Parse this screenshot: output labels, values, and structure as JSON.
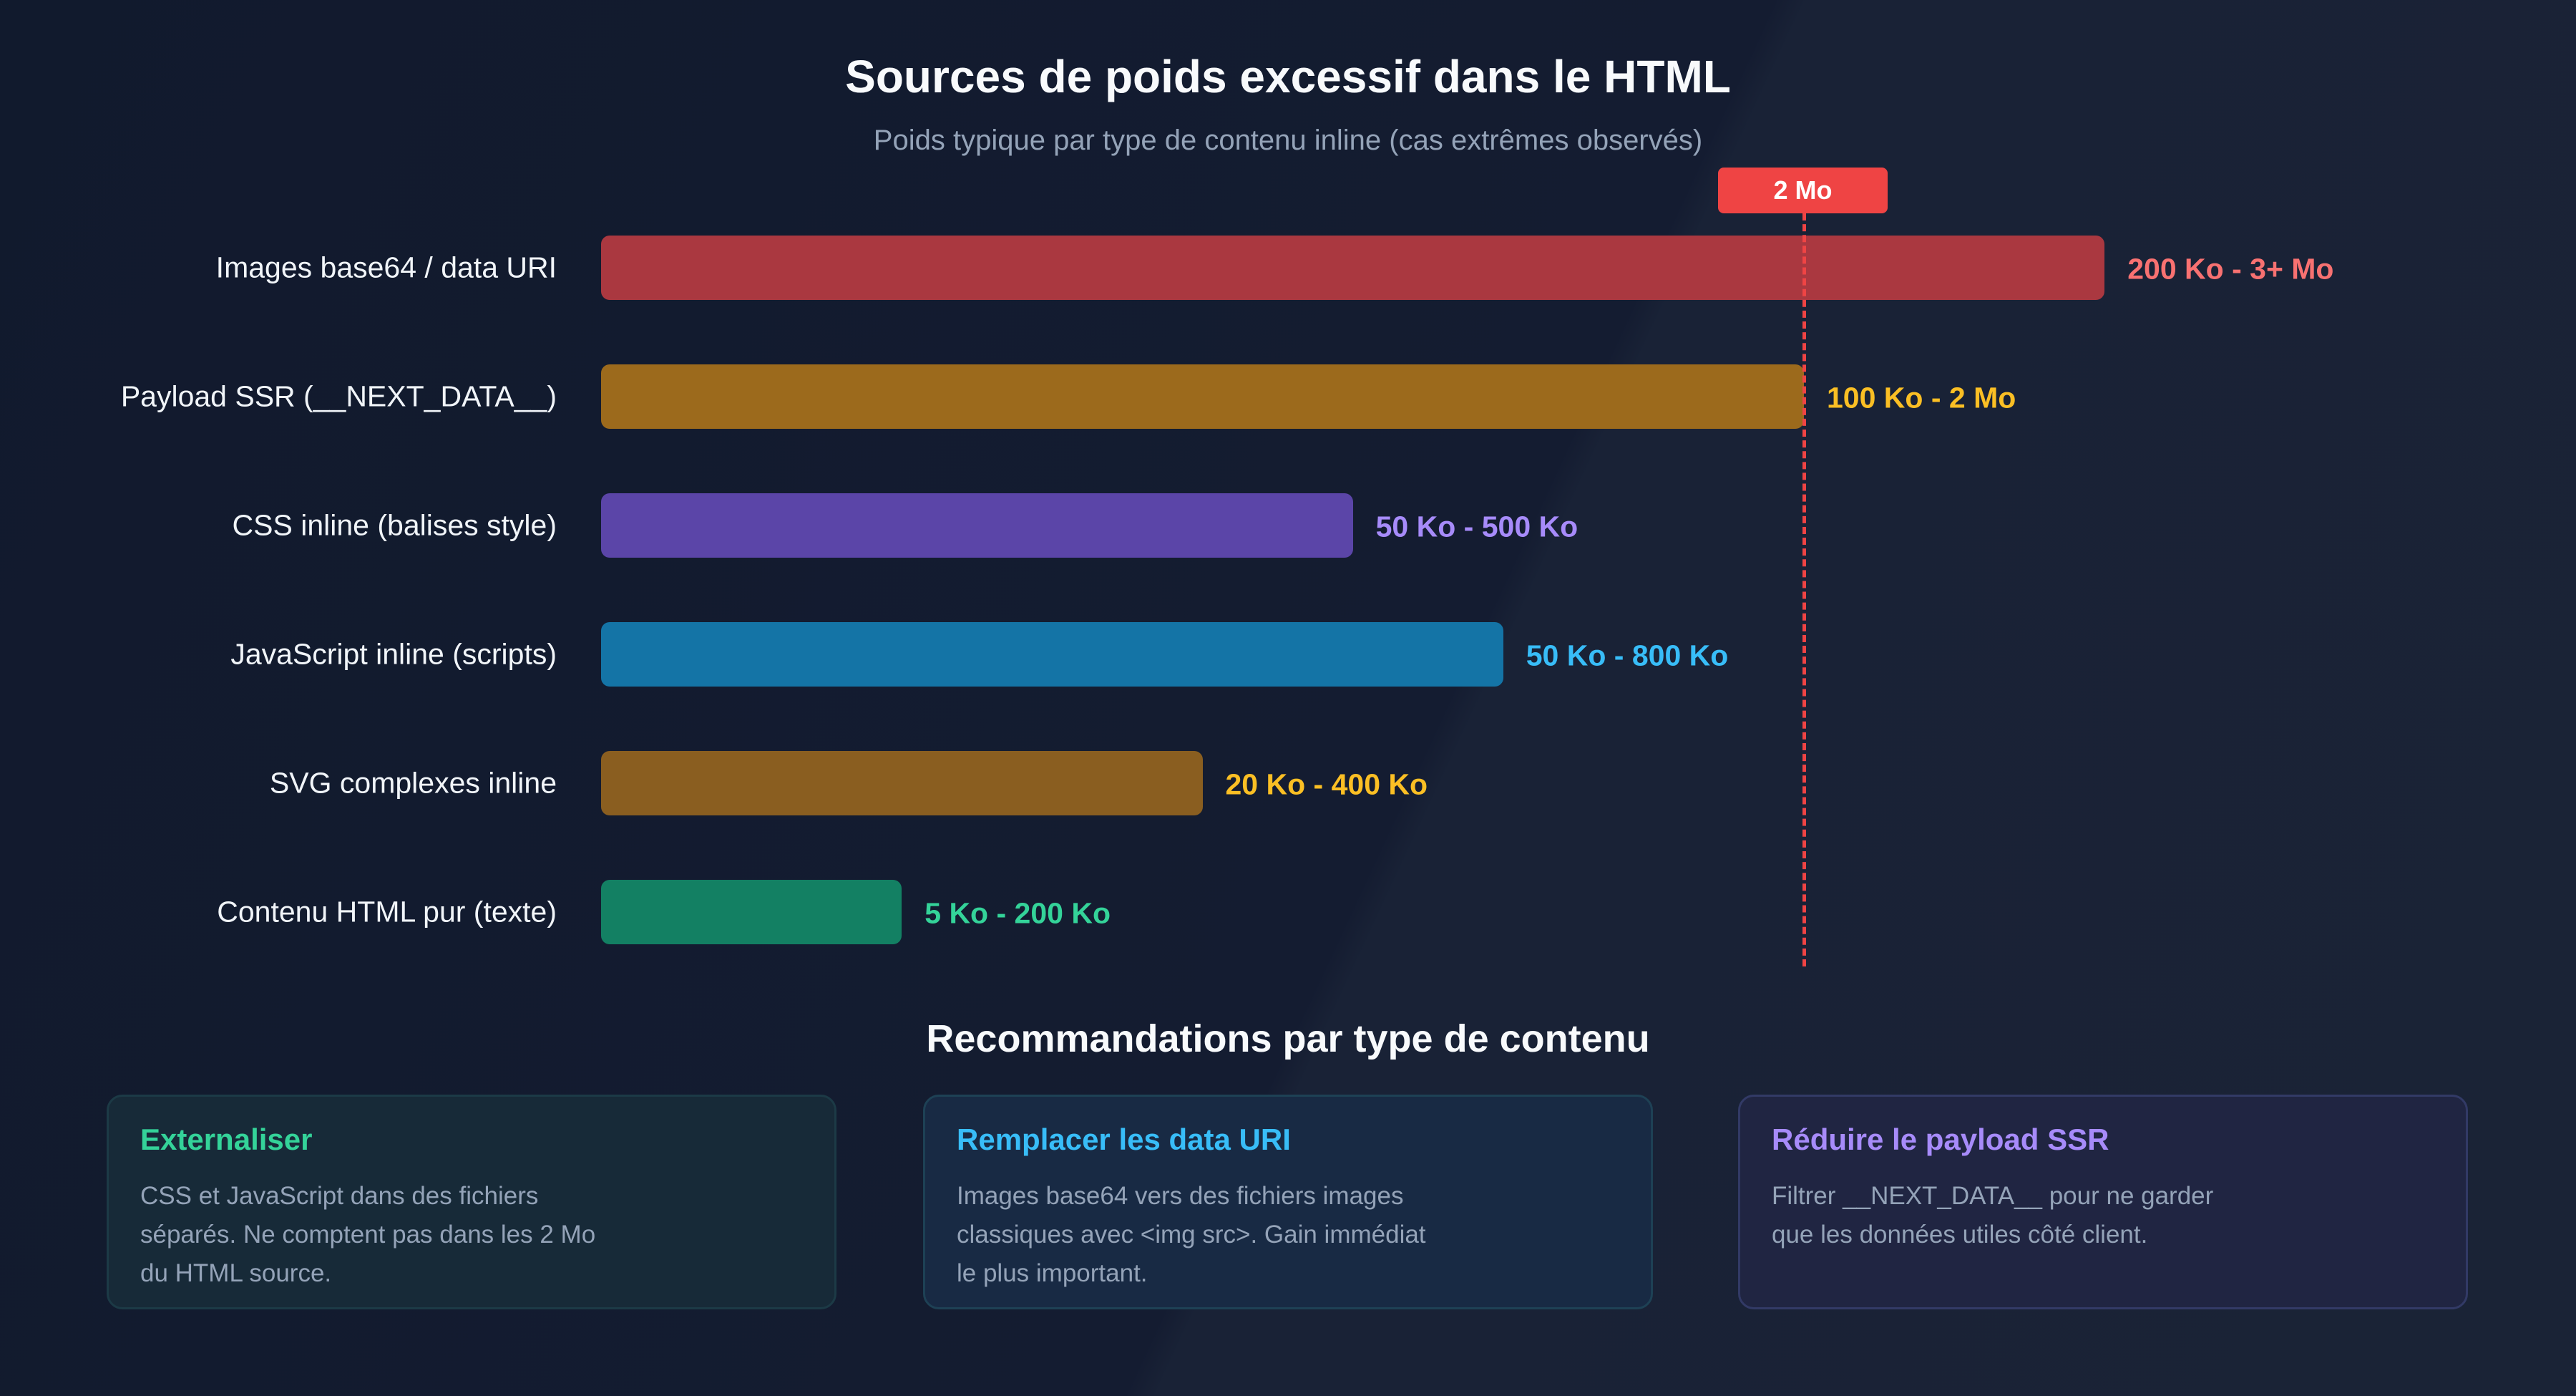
{
  "chart_data": {
    "type": "bar",
    "orientation": "horizontal",
    "title": "Sources de poids excessif dans le HTML",
    "subtitle": "Poids typique par type de contenu inline (cas extrêmes observés)",
    "unit": "Mo",
    "xlim": [
      0,
      2.5
    ],
    "grid": false,
    "reference_line": {
      "value": 2,
      "label": "2 Mo",
      "color": "#ef4444"
    },
    "categories": [
      "Images base64 / data URI",
      "Payload SSR (__NEXT_DATA__)",
      "CSS inline (balises style)",
      "JavaScript inline (scripts)",
      "SVG complexes inline",
      "Contenu HTML pur (texte)"
    ],
    "values": [
      2.5,
      2.0,
      1.25,
      1.5,
      1.0,
      0.5
    ],
    "range_labels": [
      "200 Ko - 3+ Mo",
      "100 Ko - 2 Mo",
      "50 Ko - 500 Ko",
      "50 Ko - 800 Ko",
      "20 Ko - 400 Ko",
      "5 Ko - 200 Ko"
    ],
    "bar_colors": [
      "#aa3840",
      "#9c6a1c",
      "#5b45a8",
      "#1474a6",
      "#8a5e20",
      "#138063"
    ],
    "label_colors": [
      "#f87171",
      "#fbbf24",
      "#a78bfa",
      "#38bdf8",
      "#fbbf24",
      "#34d399"
    ]
  },
  "recommendations": {
    "title": "Recommandations par type de contenu",
    "cards": [
      {
        "title": "Externaliser",
        "text": "CSS et JavaScript dans des fichiers séparés. Ne comptent pas dans les 2 Mo du HTML source.",
        "color": "#34d399",
        "bg": "#172a38",
        "border": "#1c3a46"
      },
      {
        "title": "Remplacer les data URI",
        "text": "Images base64 vers des fichiers images classiques avec <img src>. Gain immédiat le plus important.",
        "color": "#38bdf8",
        "bg": "#182a44",
        "border": "#1e4155"
      },
      {
        "title": "Réduire le payload SSR",
        "text": "Filtrer __NEXT_DATA__ pour ne garder que les données utiles côté client.",
        "color": "#a78bfa",
        "bg": "#202542",
        "border": "#323a66"
      }
    ]
  }
}
